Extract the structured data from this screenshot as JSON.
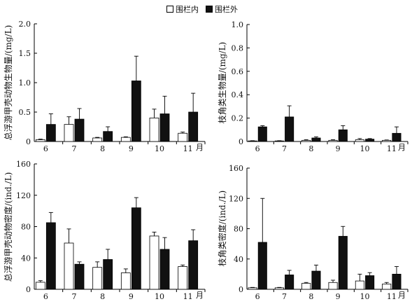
{
  "legend": {
    "inside_label": "围栏内",
    "outside_label": "围栏外"
  },
  "month_unit": "月",
  "colors": {
    "inside": "#ffffff",
    "outside": "#111111",
    "axis": "#000000"
  },
  "chart_data": [
    {
      "type": "bar",
      "ylabel": "总浮游甲壳动物生物量/(mg/L)",
      "categories": [
        "6",
        "7",
        "8",
        "9",
        "10",
        "11"
      ],
      "ylim": [
        0,
        2.0
      ],
      "yticks": [
        "0",
        "0.5",
        "1.0",
        "1.5",
        "2.0"
      ],
      "ytick_values": [
        0,
        0.5,
        1.0,
        1.5,
        2.0
      ],
      "series": [
        {
          "name": "围栏内",
          "values": [
            0.03,
            0.29,
            0.06,
            0.07,
            0.4,
            0.14
          ],
          "errors": [
            0.01,
            0.13,
            0.01,
            0.01,
            0.15,
            0.02
          ]
        },
        {
          "name": "围栏外",
          "values": [
            0.29,
            0.38,
            0.17,
            1.03,
            0.47,
            0.5
          ],
          "errors": [
            0.18,
            0.18,
            0.08,
            0.42,
            0.3,
            0.32
          ]
        }
      ]
    },
    {
      "type": "bar",
      "ylabel": "枝角类生物量/(mg/L)",
      "categories": [
        "6",
        "7",
        "8",
        "9",
        "10",
        "11"
      ],
      "ylim": [
        0,
        1.0
      ],
      "yticks": [
        "0",
        "0.2",
        "0.4",
        "0.6",
        "0.8",
        "1.0"
      ],
      "ytick_values": [
        0,
        0.2,
        0.4,
        0.6,
        0.8,
        1.0
      ],
      "series": [
        {
          "name": "围栏内",
          "values": [
            0.005,
            0.005,
            0.01,
            0.01,
            0.015,
            0.01
          ],
          "errors": [
            0.002,
            0.002,
            0.005,
            0.005,
            0.01,
            0.003
          ]
        },
        {
          "name": "围栏外",
          "values": [
            0.125,
            0.21,
            0.03,
            0.1,
            0.02,
            0.07
          ],
          "errors": [
            0.01,
            0.095,
            0.01,
            0.035,
            0.005,
            0.055
          ]
        }
      ]
    },
    {
      "type": "bar",
      "ylabel": "总浮游甲壳动物密度/(ind./L)",
      "categories": [
        "6",
        "7",
        "8",
        "9",
        "10",
        "11"
      ],
      "ylim": [
        0,
        160
      ],
      "yticks": [
        "0",
        "40",
        "80",
        "120",
        "160"
      ],
      "ytick_values": [
        0,
        40,
        80,
        120,
        160
      ],
      "series": [
        {
          "name": "围栏内",
          "values": [
            9,
            59,
            28,
            21,
            68,
            29
          ],
          "errors": [
            2,
            18,
            7,
            5,
            5,
            2
          ]
        },
        {
          "name": "围栏外",
          "values": [
            85,
            32,
            38,
            104,
            51,
            62
          ],
          "errors": [
            13,
            3,
            13,
            13,
            15,
            14
          ]
        }
      ]
    },
    {
      "type": "bar",
      "ylabel": "枝角类密度/(ind./L)",
      "categories": [
        "6",
        "7",
        "8",
        "9",
        "10",
        "11"
      ],
      "ylim": [
        0,
        160
      ],
      "yticks": [
        "0",
        "40",
        "80",
        "120",
        "160"
      ],
      "ytick_values": [
        0,
        40,
        80,
        120,
        160
      ],
      "series": [
        {
          "name": "围栏内",
          "values": [
            2,
            2,
            8,
            9,
            11,
            7
          ],
          "errors": [
            0.5,
            0.5,
            1,
            3,
            9,
            2
          ]
        },
        {
          "name": "围栏外",
          "values": [
            62,
            19,
            24,
            70,
            18,
            20
          ],
          "errors": [
            58,
            6,
            8,
            13,
            4,
            10
          ]
        }
      ]
    }
  ]
}
